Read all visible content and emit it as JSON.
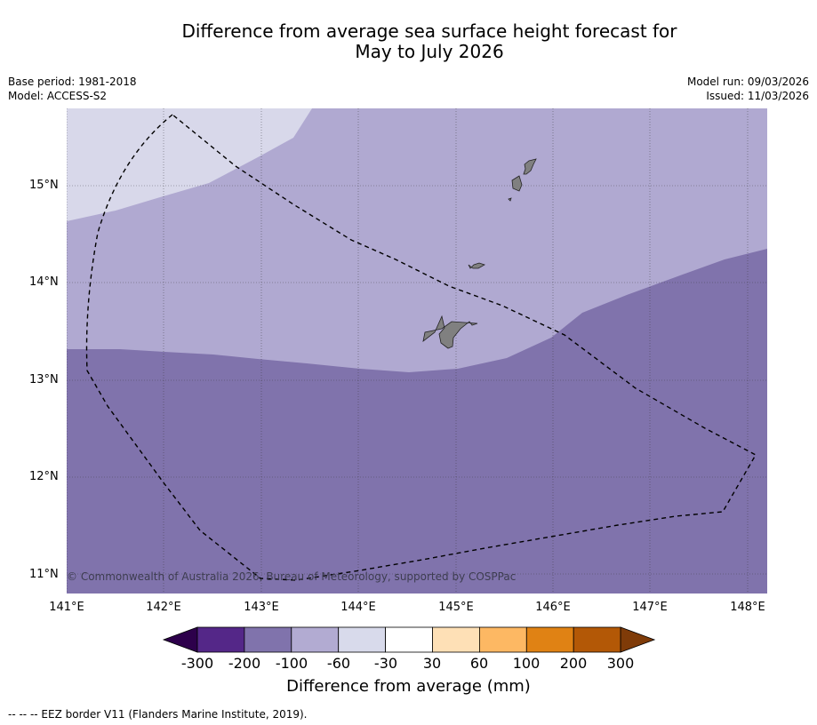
{
  "title_line1": "Difference from average sea surface height forecast for",
  "title_line2": "May to July 2026",
  "meta": {
    "base_period": "Base period: 1981-2018",
    "model": "Model: ACCESS-S2",
    "model_run": "Model run: 09/03/2026",
    "issued": "Issued: 11/03/2026"
  },
  "map": {
    "lat_labels": [
      "15°N",
      "14°N",
      "13°N",
      "12°N",
      "11°N"
    ],
    "lon_labels": [
      "141°E",
      "142°E",
      "143°E",
      "144°E",
      "145°E",
      "146°E",
      "147°E",
      "148°E"
    ],
    "copyright": "© Commonwealth of Australia 2026, Bureau of Meteorology, supported by COSPPac",
    "colors": {
      "band_lightest": "#d8d8ea",
      "band_light": "#b0a9d1",
      "band_mid": "#8073ac",
      "land": "#808080"
    }
  },
  "colorbar": {
    "title": "Difference from average (mm)",
    "tick_labels": [
      "-300",
      "-200",
      "-100",
      "-60",
      "-30",
      "30",
      "60",
      "100",
      "200",
      "300"
    ],
    "colors": [
      "#2d004b",
      "#542788",
      "#8073ac",
      "#b2abd2",
      "#d8daeb",
      "#ffffff",
      "#fee0b6",
      "#fdb863",
      "#e08214",
      "#b35806",
      "#7f3b08"
    ]
  },
  "legend_text": "--  --  -- EEZ border V11 (Flanders Marine Institute, 2019)."
}
